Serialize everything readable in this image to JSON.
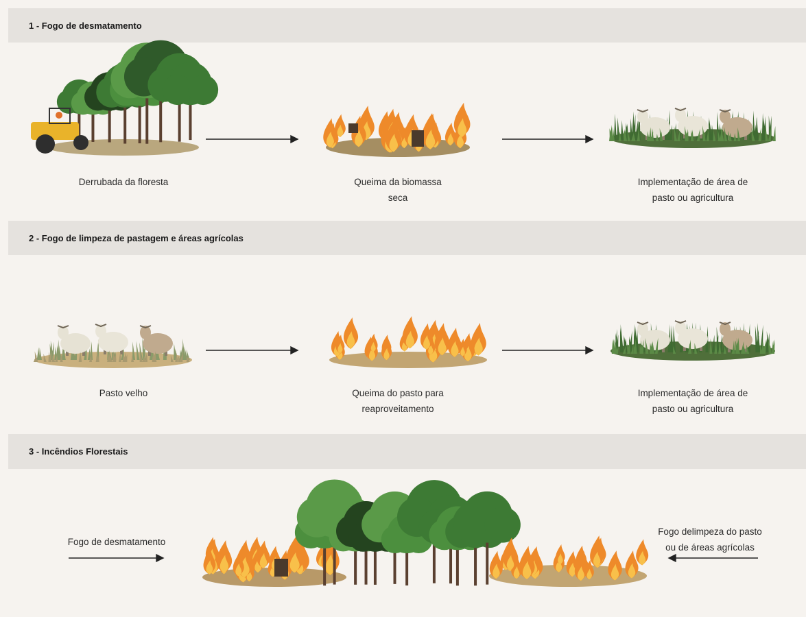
{
  "sections": [
    {
      "title": "1 - Fogo de desmatamento",
      "steps": [
        {
          "label": [
            "Derrubada da floresta"
          ]
        },
        {
          "label": [
            "Queima da biomassa",
            "seca"
          ]
        },
        {
          "label": [
            "Implementação de área de",
            "pasto ou agricultura"
          ]
        }
      ]
    },
    {
      "title": "2 - Fogo de limpeza de pastagem e áreas agrícolas",
      "steps": [
        {
          "label": [
            "Pasto velho"
          ]
        },
        {
          "label": [
            "Queima do pasto para",
            "reaproveitamento"
          ]
        },
        {
          "label": [
            "Implementação de área de",
            "pasto ou agricultura"
          ]
        }
      ]
    },
    {
      "title": "3 - Incêndios Florestais",
      "left_label": [
        "Fogo de desmatamento"
      ],
      "right_label": [
        "Fogo delimpeza do pasto",
        "ou de áreas agrícolas"
      ]
    }
  ]
}
